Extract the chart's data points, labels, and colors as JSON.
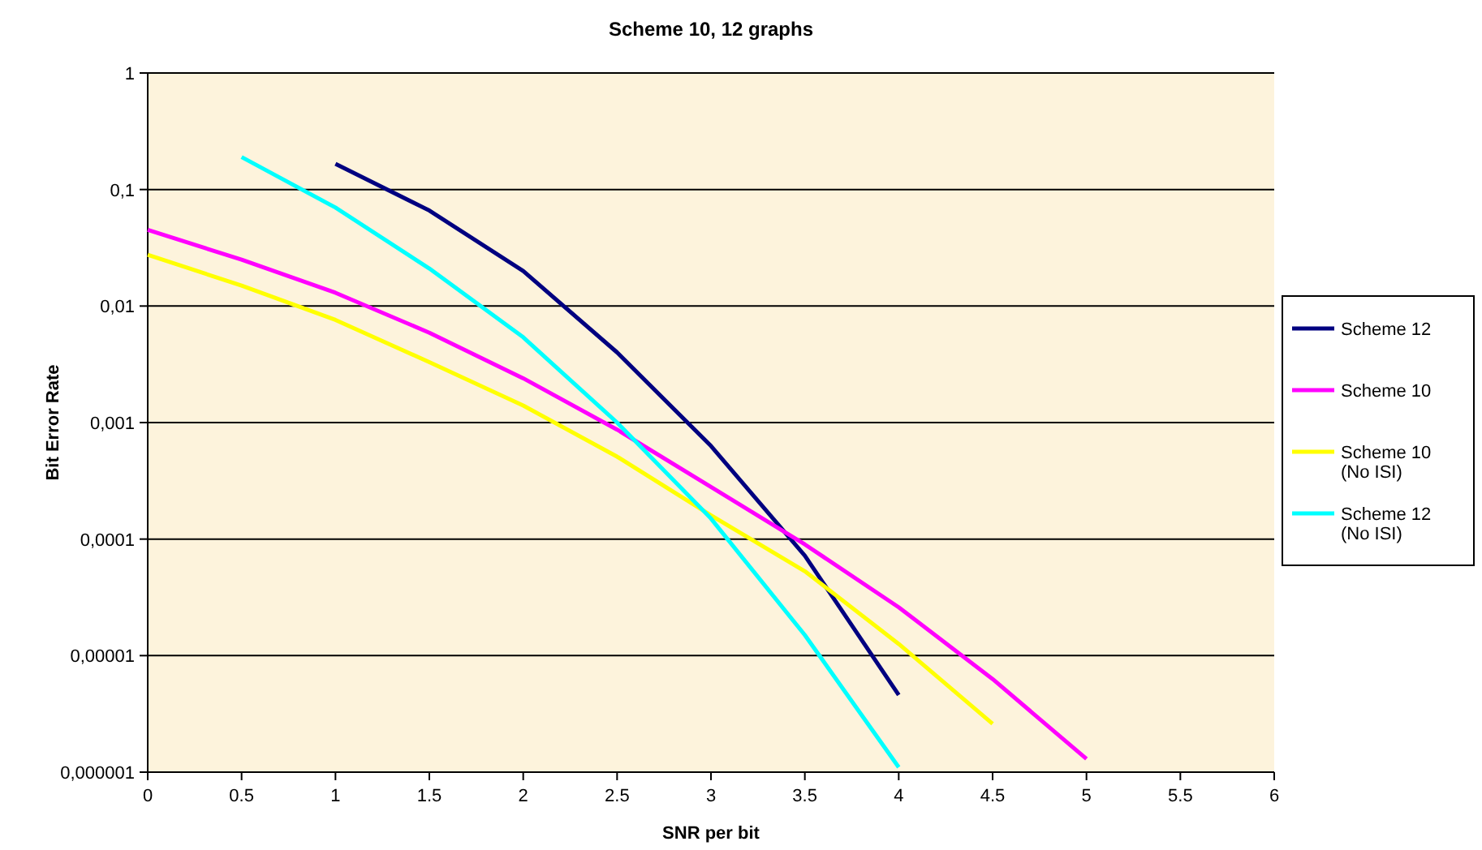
{
  "chart_data": {
    "type": "line",
    "title": "Scheme 10, 12 graphs",
    "xlabel": "SNR per bit",
    "ylabel": "Bit Error Rate",
    "log": "y",
    "grid": "y",
    "legend": "right",
    "xlim": [
      0,
      6
    ],
    "xticks": [
      0,
      0.5,
      1,
      1.5,
      2,
      2.5,
      3,
      3.5,
      4,
      4.5,
      5,
      5.5,
      6
    ],
    "ylim": [
      1e-06,
      1
    ],
    "yticks": [
      {
        "value": 1e-06,
        "label": "0,000001"
      },
      {
        "value": 1e-05,
        "label": "0,00001"
      },
      {
        "value": 0.0001,
        "label": "0,0001"
      },
      {
        "value": 0.001,
        "label": "0,001"
      },
      {
        "value": 0.01,
        "label": "0,01"
      },
      {
        "value": 0.1,
        "label": "0,1"
      },
      1
    ],
    "series": [
      {
        "name": "Scheme 12",
        "color": "#000080",
        "x": [
          1,
          1.5,
          2,
          2.5,
          3,
          3.5,
          4
        ],
        "values": [
          0.166,
          0.066,
          0.02,
          0.004,
          0.00063,
          7.2e-05,
          4.6e-06
        ]
      },
      {
        "name": "Scheme 10",
        "color": "#ff00ff",
        "x": [
          0,
          0.5,
          1,
          1.5,
          2,
          2.5,
          3,
          3.5,
          4,
          4.5,
          5
        ],
        "values": [
          0.045,
          0.025,
          0.013,
          0.0059,
          0.0024,
          0.00087,
          0.00028,
          9e-05,
          2.6e-05,
          6.3e-06,
          1.3e-06
        ]
      },
      {
        "name": "Scheme 10 (No ISI)",
        "color": "#ffff00",
        "x": [
          0,
          0.5,
          1,
          1.5,
          2,
          2.5,
          3,
          3.5,
          4,
          4.5
        ],
        "values": [
          0.0275,
          0.015,
          0.0076,
          0.0033,
          0.0014,
          0.00051,
          0.00016,
          5.3e-05,
          1.26e-05,
          2.6e-06
        ]
      },
      {
        "name": "Scheme 12 (No ISI)",
        "color": "#00ffff",
        "x": [
          0.5,
          1,
          1.5,
          2,
          2.5,
          3,
          3.5,
          4
        ],
        "values": [
          0.19,
          0.07,
          0.021,
          0.0054,
          0.001,
          0.00015,
          1.5e-05,
          1.1e-06
        ]
      }
    ]
  }
}
